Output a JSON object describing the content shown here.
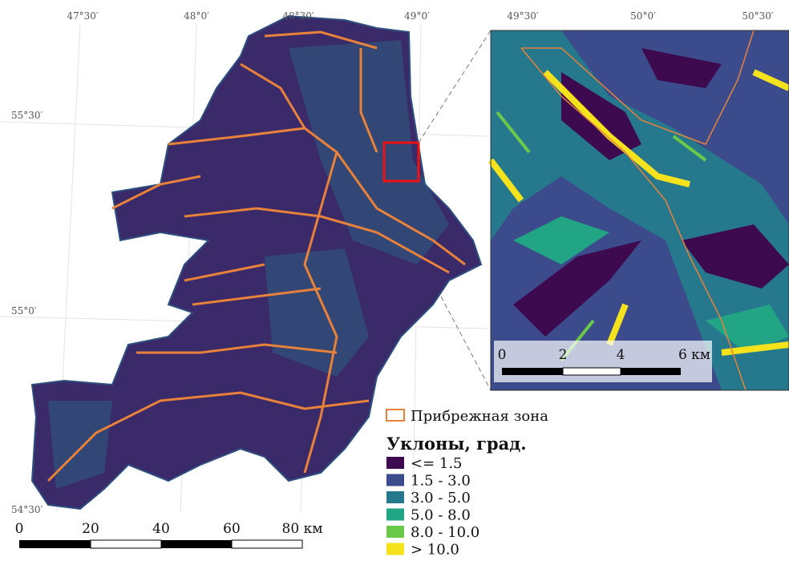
{
  "map": {
    "lon_labels": [
      "47°30′",
      "48°0′",
      "48°30′",
      "49°0′"
    ],
    "lat_labels": [
      "55°30′",
      "55°0′",
      "54°30′"
    ],
    "scale_labels": [
      "0",
      "20",
      "40",
      "60",
      "80 км"
    ],
    "inset": {
      "lon_labels": [
        "49°30′",
        "50°0′",
        "50°30′"
      ],
      "scale_labels": [
        "0",
        "2",
        "4",
        "6 км"
      ]
    },
    "legend": {
      "boundary_label": "Прибрежная зона",
      "boundary_color": "#e8823a",
      "title": "Уклоны, град.",
      "classes": [
        {
          "label": "<= 1.5",
          "color": "#3d0a4f"
        },
        {
          "label": "1.5 - 3.0",
          "color": "#3b4b8c"
        },
        {
          "label": "3.0 - 5.0",
          "color": "#26788c"
        },
        {
          "label": "5.0 - 8.0",
          "color": "#22a584"
        },
        {
          "label": "8.0 - 10.0",
          "color": "#6bc94a"
        },
        {
          "label": "> 10.0",
          "color": "#f4e21c"
        }
      ]
    }
  }
}
